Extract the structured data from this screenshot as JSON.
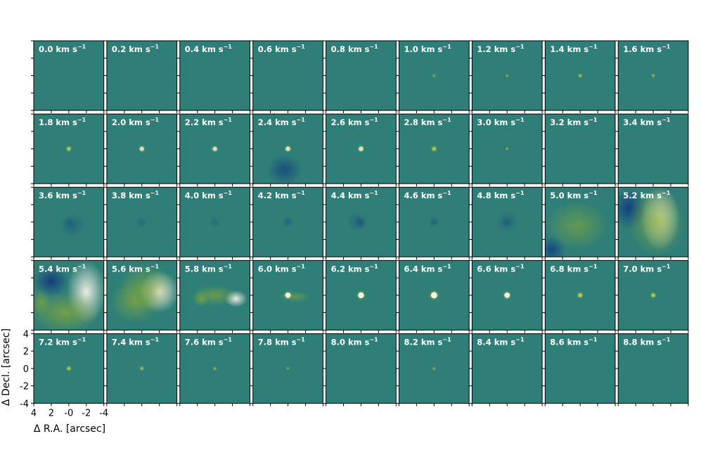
{
  "chart_data": {
    "type": "heatmap",
    "title": "",
    "layout": {
      "rows": 5,
      "cols": 9
    },
    "panel_unit": "km s⁻¹",
    "panels": [
      {
        "velocity": "0.0",
        "source_intensity": 0.0
      },
      {
        "velocity": "0.2",
        "source_intensity": 0.0
      },
      {
        "velocity": "0.4",
        "source_intensity": 0.0
      },
      {
        "velocity": "0.6",
        "source_intensity": 0.0
      },
      {
        "velocity": "0.8",
        "source_intensity": 0.0
      },
      {
        "velocity": "1.0",
        "source_intensity": 0.1
      },
      {
        "velocity": "1.2",
        "source_intensity": 0.1
      },
      {
        "velocity": "1.4",
        "source_intensity": 0.25
      },
      {
        "velocity": "1.6",
        "source_intensity": 0.15
      },
      {
        "velocity": "1.8",
        "source_intensity": 0.45
      },
      {
        "velocity": "2.0",
        "source_intensity": 0.55
      },
      {
        "velocity": "2.2",
        "source_intensity": 0.55
      },
      {
        "velocity": "2.4",
        "source_intensity": 0.6
      },
      {
        "velocity": "2.6",
        "source_intensity": 0.6
      },
      {
        "velocity": "2.8",
        "source_intensity": 0.45
      },
      {
        "velocity": "3.0",
        "source_intensity": 0.1
      },
      {
        "velocity": "3.2",
        "source_intensity": 0.0
      },
      {
        "velocity": "3.4",
        "source_intensity": 0.0
      },
      {
        "velocity": "3.6",
        "source_intensity": -0.1
      },
      {
        "velocity": "3.8",
        "source_intensity": -0.1
      },
      {
        "velocity": "4.0",
        "source_intensity": -0.1
      },
      {
        "velocity": "4.2",
        "source_intensity": -0.15
      },
      {
        "velocity": "4.4",
        "source_intensity": -0.15
      },
      {
        "velocity": "4.6",
        "source_intensity": -0.15
      },
      {
        "velocity": "4.8",
        "source_intensity": -0.1
      },
      {
        "velocity": "5.0",
        "source_intensity": 0.0
      },
      {
        "velocity": "5.2",
        "source_intensity": 0.0
      },
      {
        "velocity": "5.4",
        "source_intensity": 0.0
      },
      {
        "velocity": "5.6",
        "source_intensity": 0.0
      },
      {
        "velocity": "5.8",
        "source_intensity": 0.0
      },
      {
        "velocity": "6.0",
        "source_intensity": 0.8
      },
      {
        "velocity": "6.2",
        "source_intensity": 0.9
      },
      {
        "velocity": "6.4",
        "source_intensity": 1.0
      },
      {
        "velocity": "6.6",
        "source_intensity": 0.8
      },
      {
        "velocity": "6.8",
        "source_intensity": 0.5
      },
      {
        "velocity": "7.0",
        "source_intensity": 0.45
      },
      {
        "velocity": "7.2",
        "source_intensity": 0.35
      },
      {
        "velocity": "7.4",
        "source_intensity": 0.25
      },
      {
        "velocity": "7.6",
        "source_intensity": 0.15
      },
      {
        "velocity": "7.8",
        "source_intensity": 0.05
      },
      {
        "velocity": "8.0",
        "source_intensity": 0.0
      },
      {
        "velocity": "8.2",
        "source_intensity": 0.1
      },
      {
        "velocity": "8.4",
        "source_intensity": 0.0
      },
      {
        "velocity": "8.6",
        "source_intensity": 0.0
      },
      {
        "velocity": "8.8",
        "source_intensity": 0.0
      }
    ],
    "xlabel": "Δ R.A. [arcsec]",
    "ylabel": "Δ Decl. [arcsec]",
    "xlim": [
      4,
      -4
    ],
    "ylim": [
      -4,
      4
    ],
    "x_tick_labels": [
      "4",
      "2",
      "-0",
      "-2",
      "-4"
    ],
    "y_tick_labels": [
      "4",
      "2",
      "0",
      "-2",
      "-4"
    ],
    "colormap": "dark blue → teal → green → yellow → white",
    "colors": {
      "background": "#2f7f78",
      "low": "#123a80",
      "mid": "#8fae33",
      "high": "#f4f1e6"
    },
    "grid": false,
    "legend": "none"
  }
}
